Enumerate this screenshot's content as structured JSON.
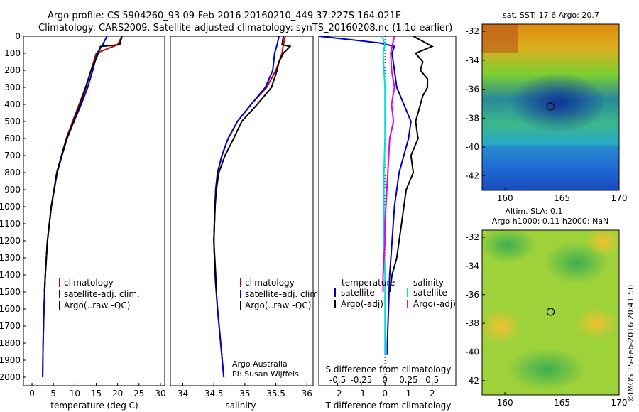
{
  "header": {
    "line1": "Argo profile: CS 5904260_93 09-Feb-2016 20160210_449 37.227S 164.021E",
    "line2": "Climatology: CARS2009. Satellite-adjusted climatology: synTS_20160208.nc (1.1d earlier)"
  },
  "colors": {
    "climatology": "#cc0000",
    "satellite": "#0000cc",
    "argo": "#000000",
    "sal_sat": "#00e0e0",
    "sal_argo": "#e000e0"
  },
  "chart_data": [
    {
      "type": "line",
      "title": "",
      "xlabel": "temperature (deg C)",
      "ylabel": "",
      "xlim": [
        -2,
        31
      ],
      "ylim": [
        2050,
        0
      ],
      "xticks": [
        "0",
        "5",
        "10",
        "15",
        "20",
        "25",
        "30"
      ],
      "yticks": [
        "0",
        "100",
        "200",
        "300",
        "400",
        "500",
        "600",
        "700",
        "800",
        "900",
        "1000",
        "1100",
        "1200",
        "1300",
        "1400",
        "1500",
        "1600",
        "1700",
        "1800",
        "1900",
        "2000"
      ],
      "legend": {
        "position": "lower-middle",
        "entries": [
          "climatology",
          "satellite-adj. clim.",
          "Argo(..raw -QC)"
        ]
      },
      "series": [
        {
          "name": "climatology",
          "depth": [
            0,
            50,
            100,
            200,
            300,
            400,
            500,
            600,
            700,
            800,
            1000,
            1200,
            1400,
            1600,
            1800,
            2000
          ],
          "values": [
            21,
            20,
            15,
            13.8,
            12.5,
            11,
            9.5,
            8,
            6.9,
            5.8,
            4.5,
            3.6,
            3.1,
            2.8,
            2.6,
            2.5
          ]
        },
        {
          "name": "satellite-adj. clim.",
          "depth": [
            0,
            50,
            100,
            200,
            300,
            400,
            500,
            600,
            700,
            800,
            1000,
            1200,
            1400,
            1600,
            1800,
            2000
          ],
          "values": [
            17.5,
            16.5,
            15.2,
            14.2,
            13,
            11.5,
            9.8,
            8.2,
            7,
            5.9,
            4.5,
            3.6,
            3.1,
            2.8,
            2.6,
            2.5
          ]
        },
        {
          "name": "Argo(..raw -QC)",
          "depth": [
            0,
            50,
            60,
            100,
            200,
            300,
            400,
            500,
            600,
            700,
            800,
            1000,
            1200,
            1400,
            1500
          ],
          "values": [
            21,
            20.5,
            16,
            15.5,
            13.8,
            12.6,
            11.2,
            9.7,
            8.1,
            6.9,
            5.8,
            4.5,
            3.6,
            3.1,
            2.9
          ]
        }
      ]
    },
    {
      "type": "line",
      "title": "",
      "xlabel": "salinity",
      "ylabel": "",
      "xlim": [
        33.8,
        36.1
      ],
      "ylim": [
        2050,
        0
      ],
      "xticks": [
        "34",
        "34.5",
        "35",
        "35.5",
        "36"
      ],
      "legend": {
        "position": "lower-middle",
        "entries": [
          "climatology",
          "satellite-adj. clim.",
          "Argo(..raw -QC)"
        ]
      },
      "annotations": [
        "Argo Australia",
        "PI: Susan Wijffels"
      ],
      "series": [
        {
          "name": "climatology",
          "depth": [
            0,
            50,
            100,
            200,
            300,
            400,
            500,
            600,
            700,
            800,
            900,
            1000,
            1100,
            1200,
            1400,
            1600,
            1800,
            2000
          ],
          "values": [
            35.65,
            35.62,
            35.6,
            35.5,
            35.35,
            35.1,
            34.88,
            34.73,
            34.63,
            34.56,
            34.53,
            34.52,
            34.51,
            34.5,
            34.52,
            34.56,
            34.61,
            34.66
          ]
        },
        {
          "name": "satellite-adj. clim.",
          "depth": [
            0,
            50,
            100,
            200,
            300,
            400,
            500,
            600,
            700,
            800,
            900,
            1000,
            1100,
            1200,
            1400,
            1600,
            1800,
            2000
          ],
          "values": [
            35.55,
            35.52,
            35.48,
            35.45,
            35.33,
            35.1,
            34.88,
            34.73,
            34.63,
            34.56,
            34.53,
            34.52,
            34.51,
            34.5,
            34.52,
            34.56,
            34.61,
            34.66
          ]
        },
        {
          "name": "Argo(..raw -QC)",
          "depth": [
            0,
            50,
            60,
            100,
            150,
            200,
            300,
            400,
            500,
            600,
            700,
            800,
            900,
            1000,
            1100,
            1200,
            1400,
            1500
          ],
          "values": [
            35.62,
            35.6,
            35.73,
            35.62,
            35.55,
            35.52,
            35.43,
            35.2,
            34.95,
            34.82,
            34.68,
            34.58,
            34.54,
            34.52,
            34.51,
            34.5,
            34.53,
            34.54
          ]
        }
      ]
    },
    {
      "type": "line",
      "title": "",
      "xlabel": "T difference from climatology",
      "x2label": "S difference from climatology",
      "ylabel": "",
      "xlim": [
        -2.8,
        3.0
      ],
      "x2lim": [
        -0.7,
        0.75
      ],
      "ylim": [
        2050,
        0
      ],
      "xticks": [
        "-2",
        "-1",
        "0",
        "1",
        "2"
      ],
      "x2ticks": [
        "-0.5",
        "-0.25",
        "0",
        "0.25",
        "0.5"
      ],
      "legend": {
        "position": "lower-middle",
        "temperature_heading": "temperature",
        "salinity_heading": "salinity",
        "entries": [
          "satellite",
          "Argo(-adj)",
          "satellite",
          "Argo(-adj)"
        ]
      },
      "series": [
        {
          "name": "temperature satellite",
          "depth": [
            0,
            20,
            40,
            60,
            100,
            200,
            300,
            400,
            500,
            600,
            800,
            1000,
            1200,
            1400,
            1600,
            1800,
            1870
          ],
          "values": [
            -2.8,
            -1.5,
            -0.2,
            0.4,
            0.3,
            0.4,
            0.5,
            0.8,
            1.1,
            1.0,
            0.6,
            0.4,
            0.3,
            0.2,
            0.15,
            0.1,
            0.1
          ]
        },
        {
          "name": "temperature Argo(-adj)",
          "depth": [
            0,
            60,
            100,
            150,
            200,
            250,
            300,
            350,
            400,
            500,
            600,
            700,
            800,
            900,
            1000,
            1100,
            1200,
            1300,
            1400,
            1500
          ],
          "values": [
            1.2,
            2.0,
            1.3,
            1.6,
            1.5,
            1.8,
            1.8,
            1.6,
            1.5,
            1.3,
            1.4,
            1.1,
            1.2,
            0.9,
            0.8,
            0.7,
            0.6,
            0.5,
            0.3,
            0.2
          ]
        },
        {
          "name": "salinity satellite",
          "depth": [
            0,
            50,
            100,
            200,
            300,
            400,
            600,
            800,
            1000,
            1200,
            1400,
            1600,
            1800,
            1870
          ],
          "values": [
            -0.03,
            0.0,
            -0.02,
            -0.01,
            0.0,
            0.0,
            0.0,
            -0.01,
            -0.01,
            -0.01,
            0.0,
            0.0,
            0.0,
            0.0
          ]
        },
        {
          "name": "salinity Argo(-adj)",
          "depth": [
            0,
            50,
            100,
            200,
            300,
            400,
            500,
            600,
            700,
            800,
            900,
            1000,
            1100,
            1200,
            1300,
            1400,
            1500
          ],
          "values": [
            0.1,
            0.08,
            0.06,
            0.07,
            0.1,
            0.07,
            0.09,
            0.05,
            0.04,
            0.03,
            0.02,
            0.01,
            0.0,
            0.0,
            -0.01,
            -0.02,
            -0.02
          ]
        }
      ]
    },
    {
      "type": "heatmap",
      "title": "sat. SST: 17.6 Argo: 20.7",
      "xlim": [
        158,
        170
      ],
      "ylim": [
        -43,
        -31.5
      ],
      "xticks": [
        "160",
        "165",
        "170"
      ],
      "yticks": [
        "-32",
        "-34",
        "-36",
        "-38",
        "-40",
        "-42"
      ],
      "marker": {
        "lon": 164.0,
        "lat": -37.2
      }
    },
    {
      "type": "heatmap",
      "title": "Altim. SLA: 0.1",
      "subtitle": "Argo h1000: 0.11 h2000: NaN",
      "xlim": [
        158,
        170
      ],
      "ylim": [
        -43,
        -31.5
      ],
      "xticks": [
        "160",
        "165",
        "170"
      ],
      "yticks": [
        "-32",
        "-34",
        "-36",
        "-38",
        "-40",
        "-42"
      ],
      "marker": {
        "lon": 164.0,
        "lat": -37.2
      }
    }
  ],
  "watermark": "©IMOS 15-Feb-2016 20:41:50"
}
